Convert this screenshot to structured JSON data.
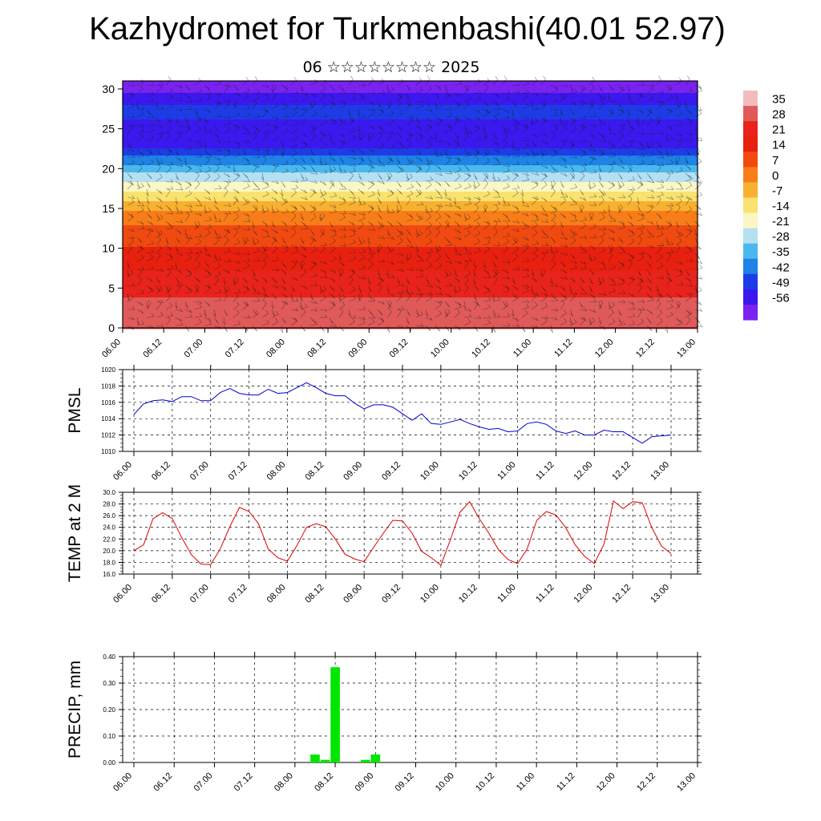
{
  "header": {
    "title": "Kazhydromet for Turkmenbashi(40.01 52.97)",
    "subtitle": "06 ☆☆☆☆☆☆☆☆ 2025"
  },
  "time_ticks": [
    "06.00",
    "06.12",
    "07.00",
    "07.12",
    "08.00",
    "08.12",
    "09.00",
    "09.12",
    "10.00",
    "10.12",
    "11.00",
    "11.12",
    "12.00",
    "12.12",
    "13.00"
  ],
  "chart_data": [
    {
      "type": "heatmap",
      "name": "vertical-cross-section",
      "title": "",
      "ylim": [
        0,
        31
      ],
      "y_ticks": [
        0,
        5,
        10,
        15,
        20,
        25,
        30
      ],
      "xlabel": "",
      "ylabel": "",
      "colorbar": {
        "labels": [
          "35",
          "28",
          "21",
          "14",
          "7",
          "0",
          "-7",
          "-14",
          "-21",
          "-28",
          "-35",
          "-42",
          "-49",
          "-56"
        ],
        "colors": [
          "#f2bcbc",
          "#e05a5a",
          "#e8231b",
          "#e82010",
          "#f04a10",
          "#f87d18",
          "#f8b030",
          "#fae270",
          "#fbf6c4",
          "#b4e0f2",
          "#4ab8ee",
          "#1e82e6",
          "#1e3ce6",
          "#3a18ee",
          "#7a22f0"
        ]
      },
      "temperature_profile": {
        "heights": [
          0,
          3,
          6,
          9,
          12,
          14,
          15.5,
          17,
          18.5,
          20,
          21.5,
          23,
          24.5,
          26,
          27.5,
          29,
          31
        ],
        "values": [
          30,
          26,
          20,
          14,
          7,
          1,
          -6,
          -15,
          -24,
          -33,
          -42,
          -52,
          -56,
          -50,
          -46,
          -55,
          -60
        ]
      },
      "wind_barbs": true
    },
    {
      "type": "line",
      "name": "PMSL",
      "ylabel": "PMSL",
      "ylim": [
        1010,
        1020
      ],
      "y_ticks": [
        "1010",
        "1012",
        "1014",
        "1016",
        "1018",
        "1020"
      ],
      "grid": true,
      "color": "#0000d0",
      "series": [
        {
          "x_step_hours": 3,
          "values": [
            1014.5,
            1015.8,
            1016.2,
            1016.3,
            1016.1,
            1016.7,
            1016.7,
            1016.2,
            1016.2,
            1017.2,
            1017.7,
            1017.1,
            1016.9,
            1016.9,
            1017.6,
            1017.1,
            1017.2,
            1017.8,
            1018.4,
            1017.8,
            1017.1,
            1016.8,
            1016.8,
            1015.9,
            1015.2,
            1015.7,
            1015.7,
            1015.4,
            1014.6,
            1013.8,
            1014.6,
            1013.4,
            1013.3,
            1013.6,
            1013.9,
            1013.4,
            1013.0,
            1012.7,
            1012.8,
            1012.4,
            1012.5,
            1013.4,
            1013.6,
            1013.3,
            1012.5,
            1012.2,
            1012.5,
            1012.0,
            1012.0,
            1012.6,
            1012.4,
            1012.4,
            1011.7,
            1011.0,
            1011.8,
            1011.9,
            1012.0
          ]
        }
      ]
    },
    {
      "type": "line",
      "name": "TEMP at 2 M",
      "ylabel": "TEMP at 2 M",
      "ylim": [
        16,
        30
      ],
      "y_ticks": [
        "16.0",
        "18.0",
        "20.0",
        "22.0",
        "24.0",
        "26.0",
        "28.0",
        "30.0"
      ],
      "grid": true,
      "color": "#e00000",
      "series": [
        {
          "x_step_hours": 3,
          "values": [
            20.0,
            21.0,
            25.5,
            26.5,
            25.5,
            22.2,
            19.3,
            17.7,
            17.6,
            20.3,
            24.1,
            27.4,
            26.7,
            24.6,
            20.3,
            18.8,
            18.2,
            20.9,
            24.0,
            24.6,
            24.1,
            22.0,
            19.4,
            18.6,
            18.1,
            20.6,
            23.0,
            25.2,
            25.1,
            23.0,
            19.9,
            18.8,
            17.5,
            21.9,
            26.6,
            28.4,
            25.5,
            23.0,
            20.2,
            18.5,
            17.8,
            20.3,
            25.2,
            26.7,
            26.1,
            24.0,
            21.0,
            19.0,
            17.8,
            21.1,
            28.5,
            27.2,
            28.4,
            28.2,
            23.9,
            20.8,
            19.5
          ]
        }
      ]
    },
    {
      "type": "bar",
      "name": "PRECIP, mm",
      "ylabel": "PRECIP, mm",
      "ylim": [
        0,
        0.4
      ],
      "y_ticks": [
        "0.00",
        "0.10",
        "0.20",
        "0.30",
        "0.40"
      ],
      "grid": true,
      "color": "#00e600",
      "series": [
        {
          "x_step_hours": 3,
          "values": [
            0,
            0,
            0,
            0,
            0,
            0,
            0,
            0,
            0,
            0,
            0,
            0,
            0,
            0,
            0,
            0,
            0,
            0,
            0.03,
            0.01,
            0.36,
            0,
            0,
            0.01,
            0.03,
            0,
            0,
            0,
            0,
            0,
            0,
            0,
            0,
            0,
            0,
            0,
            0,
            0,
            0,
            0,
            0,
            0,
            0,
            0,
            0,
            0,
            0,
            0,
            0,
            0,
            0,
            0,
            0,
            0,
            0,
            0,
            0
          ]
        }
      ]
    }
  ]
}
